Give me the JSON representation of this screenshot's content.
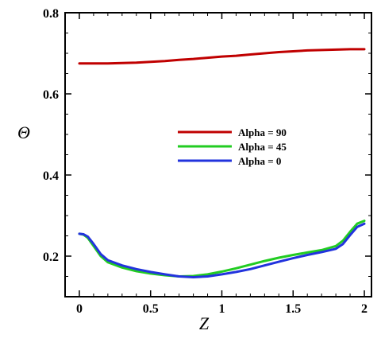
{
  "chart_data": {
    "type": "line",
    "title": "",
    "xlabel": "Z",
    "ylabel": "Θ",
    "xlim": [
      -0.1,
      2.05
    ],
    "ylim": [
      0.1,
      0.8
    ],
    "xticks": [
      0,
      0.5,
      1,
      1.5,
      2
    ],
    "xtick_labels": [
      "0",
      "0.5",
      "1",
      "1.5",
      "2"
    ],
    "yticks": [
      0.2,
      0.4,
      0.6,
      0.8
    ],
    "ytick_labels": [
      "0.2",
      "0.4",
      "0.6",
      "0.8"
    ],
    "grid": false,
    "legend_position": "center",
    "series": [
      {
        "name": "Alpha = 90",
        "color": "#c00000",
        "x": [
          0,
          0.1,
          0.2,
          0.3,
          0.4,
          0.5,
          0.6,
          0.7,
          0.8,
          0.9,
          1.0,
          1.1,
          1.2,
          1.3,
          1.4,
          1.5,
          1.6,
          1.7,
          1.8,
          1.9,
          2.0
        ],
        "y": [
          0.675,
          0.675,
          0.675,
          0.676,
          0.677,
          0.679,
          0.681,
          0.684,
          0.686,
          0.689,
          0.692,
          0.694,
          0.697,
          0.7,
          0.703,
          0.705,
          0.707,
          0.708,
          0.709,
          0.71,
          0.71
        ]
      },
      {
        "name": "Alpha = 45",
        "color": "#22cc22",
        "x": [
          0,
          0.03,
          0.06,
          0.1,
          0.15,
          0.2,
          0.3,
          0.4,
          0.5,
          0.6,
          0.7,
          0.8,
          0.9,
          1.0,
          1.1,
          1.2,
          1.3,
          1.4,
          1.5,
          1.6,
          1.7,
          1.8,
          1.85,
          1.9,
          1.95,
          2.0
        ],
        "y": [
          0.255,
          0.253,
          0.245,
          0.225,
          0.2,
          0.185,
          0.172,
          0.163,
          0.157,
          0.153,
          0.15,
          0.151,
          0.155,
          0.162,
          0.17,
          0.179,
          0.188,
          0.196,
          0.203,
          0.209,
          0.215,
          0.225,
          0.238,
          0.26,
          0.28,
          0.287
        ]
      },
      {
        "name": "Alpha = 0",
        "color": "#2233dd",
        "x": [
          0,
          0.03,
          0.06,
          0.1,
          0.15,
          0.2,
          0.3,
          0.4,
          0.5,
          0.6,
          0.7,
          0.8,
          0.9,
          1.0,
          1.1,
          1.2,
          1.3,
          1.4,
          1.5,
          1.6,
          1.7,
          1.8,
          1.85,
          1.9,
          1.95,
          2.0
        ],
        "y": [
          0.255,
          0.254,
          0.248,
          0.23,
          0.205,
          0.19,
          0.177,
          0.168,
          0.161,
          0.155,
          0.15,
          0.148,
          0.15,
          0.155,
          0.161,
          0.168,
          0.177,
          0.186,
          0.195,
          0.203,
          0.21,
          0.218,
          0.23,
          0.252,
          0.272,
          0.28
        ]
      }
    ]
  }
}
